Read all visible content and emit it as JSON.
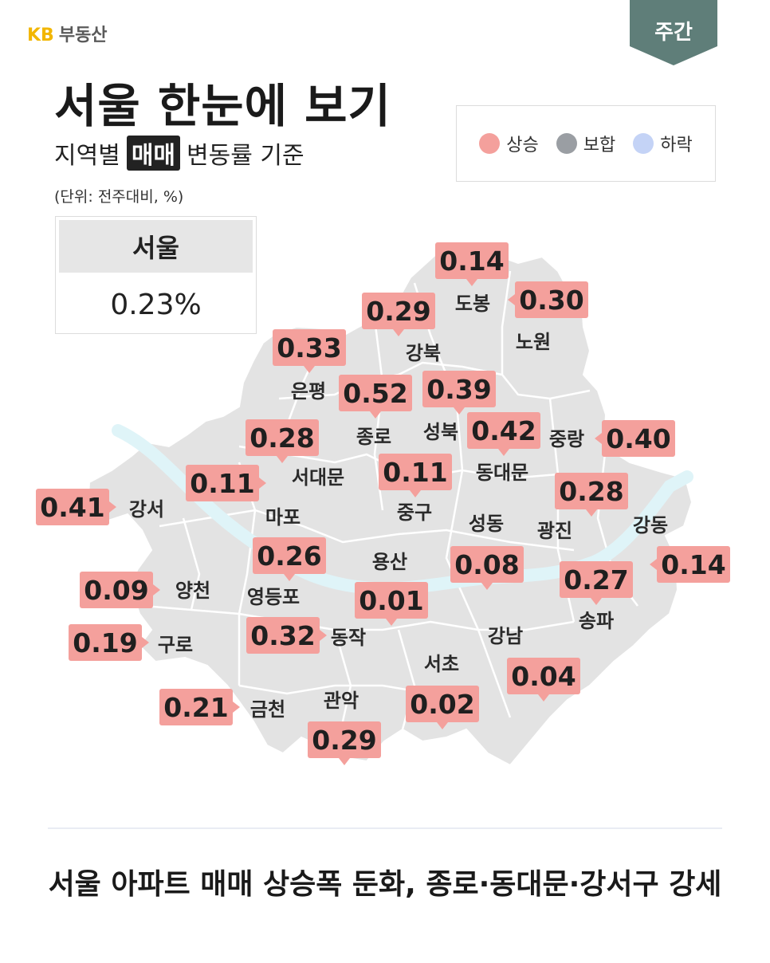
{
  "brand": {
    "kb": "KB",
    "name": "부동산"
  },
  "period_tab": "주간",
  "title": "서울 한눈에 보기",
  "subtitle": {
    "before": "지역별",
    "highlight": "매매",
    "after": "변동률 기준"
  },
  "unit": "(단위: 전주대비, %)",
  "legend": [
    {
      "label": "상승",
      "color": "#f4a09c"
    },
    {
      "label": "보합",
      "color": "#9a9ea3"
    },
    {
      "label": "하락",
      "color": "#c4d3f6"
    }
  ],
  "seoul": {
    "label": "서울",
    "value": "0.23%"
  },
  "colors": {
    "map_fill": "#e3e3e3",
    "river": "#dff4f8",
    "badge": "#f4a09c",
    "tab": "#5f7e79"
  },
  "districts": [
    {
      "name": "도봉",
      "value": "0.14"
    },
    {
      "name": "노원",
      "value": "0.30"
    },
    {
      "name": "강북",
      "value": "0.29"
    },
    {
      "name": "은평",
      "value": "0.33"
    },
    {
      "name": "종로",
      "value": "0.52"
    },
    {
      "name": "성북",
      "value": "0.39"
    },
    {
      "name": "동대문",
      "value": "0.42"
    },
    {
      "name": "중랑",
      "value": "0.40"
    },
    {
      "name": "서대문",
      "value": "0.28"
    },
    {
      "name": "중구",
      "value": "0.11"
    },
    {
      "name": "마포",
      "value": "0.11"
    },
    {
      "name": "강서",
      "value": "0.41"
    },
    {
      "name": "광진",
      "value": "0.28"
    },
    {
      "name": "강동",
      "value": "0.14"
    },
    {
      "name": "성동",
      "value": "0.08"
    },
    {
      "name": "용산",
      "value": "0.01"
    },
    {
      "name": "영등포",
      "value": "0.26"
    },
    {
      "name": "양천",
      "value": "0.09"
    },
    {
      "name": "송파",
      "value": "0.27"
    },
    {
      "name": "구로",
      "value": "0.19"
    },
    {
      "name": "동작",
      "value": "0.32"
    },
    {
      "name": "강남",
      "value": "0.04"
    },
    {
      "name": "서초",
      "value": "0.02"
    },
    {
      "name": "금천",
      "value": "0.21"
    },
    {
      "name": "관악",
      "value": "0.29"
    }
  ],
  "headline": "서울 아파트 매매 상승폭 둔화, 종로·동대문·강서구 강세"
}
